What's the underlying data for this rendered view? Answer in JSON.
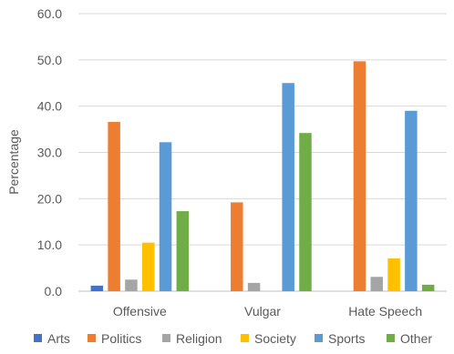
{
  "chart_data": {
    "type": "bar",
    "title": "",
    "xlabel": "",
    "ylabel": "Percentage",
    "ylim": [
      0,
      60
    ],
    "yticks": [
      "0.0",
      "10.0",
      "20.0",
      "30.0",
      "40.0",
      "50.0",
      "60.0"
    ],
    "grid": true,
    "legend_position": "bottom",
    "categories": [
      "Offensive",
      "Vulgar",
      "Hate Speech"
    ],
    "series": [
      {
        "name": "Arts",
        "color": "#4472C4",
        "values": [
          1.2,
          0.0,
          0.0
        ]
      },
      {
        "name": "Politics",
        "color": "#ED7D31",
        "values": [
          36.6,
          19.2,
          49.7
        ]
      },
      {
        "name": "Religion",
        "color": "#A5A5A5",
        "values": [
          2.5,
          1.8,
          3.1
        ]
      },
      {
        "name": "Society",
        "color": "#FFC000",
        "values": [
          10.5,
          0.0,
          7.1
        ]
      },
      {
        "name": "Sports",
        "color": "#5B9BD5",
        "values": [
          32.2,
          45.0,
          39.0
        ]
      },
      {
        "name": "Other",
        "color": "#70AD47",
        "values": [
          17.3,
          34.2,
          1.4
        ]
      }
    ]
  }
}
